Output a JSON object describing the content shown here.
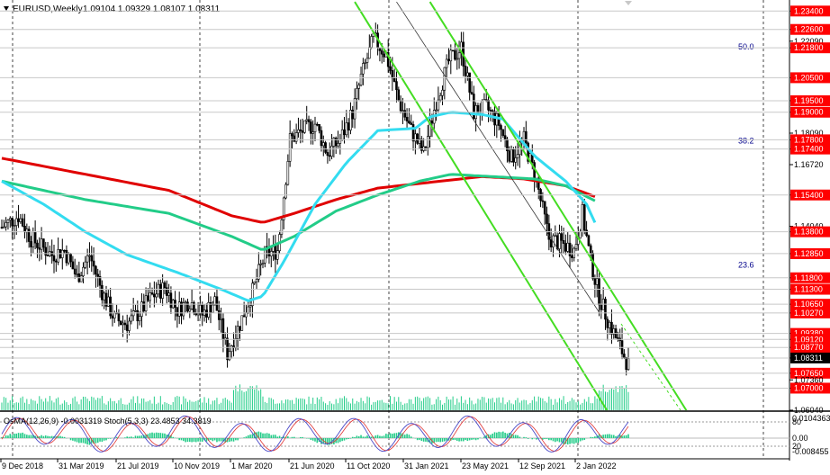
{
  "header": {
    "symbol": "EURUSD,Weekly",
    "ohlc": "1.09104 1.09329 1.08107 1.08311"
  },
  "subwindow": {
    "label": "OsMA(12,26,9) -0.0031319  Stoch(5,3,3) 23.4853 34.3819",
    "right_axis": [
      "0.0104363",
      "0.00",
      "-0.008455",
      "80",
      "20"
    ]
  },
  "fibonacci": [
    {
      "label": "50.0",
      "price": 1.2185
    },
    {
      "label": "38.2",
      "price": 1.1775
    },
    {
      "label": "23.6",
      "price": 1.1235
    }
  ],
  "price_axis": [
    {
      "label": "1.23400",
      "value": 1.234,
      "marker": true
    },
    {
      "label": "1.22600",
      "value": 1.226,
      "marker": true
    },
    {
      "label": "1.22090",
      "value": 1.2209,
      "marker": false
    },
    {
      "label": "1.21800",
      "value": 1.218,
      "marker": true
    },
    {
      "label": "1.20500",
      "value": 1.205,
      "marker": true
    },
    {
      "label": "1.19500",
      "value": 1.195,
      "marker": true
    },
    {
      "label": "1.19000",
      "value": 1.19,
      "marker": true
    },
    {
      "label": "1.18090",
      "value": 1.1809,
      "marker": false
    },
    {
      "label": "1.17800",
      "value": 1.178,
      "marker": true
    },
    {
      "label": "1.17400",
      "value": 1.174,
      "marker": true
    },
    {
      "label": "1.16720",
      "value": 1.1672,
      "marker": false
    },
    {
      "label": "1.15400",
      "value": 1.154,
      "marker": true
    },
    {
      "label": "1.14040",
      "value": 1.1404,
      "marker": false
    },
    {
      "label": "1.13800",
      "value": 1.138,
      "marker": true
    },
    {
      "label": "1.12850",
      "value": 1.1285,
      "marker": true
    },
    {
      "label": "1.11800",
      "value": 1.118,
      "marker": true
    },
    {
      "label": "1.11300",
      "value": 1.113,
      "marker": true
    },
    {
      "label": "1.10650",
      "value": 1.1065,
      "marker": true
    },
    {
      "label": "1.10270",
      "value": 1.1027,
      "marker": true
    },
    {
      "label": "1.09380",
      "value": 1.0938,
      "marker": true
    },
    {
      "label": "1.09120",
      "value": 1.0912,
      "marker": true
    },
    {
      "label": "1.08770",
      "value": 1.0877,
      "marker": true
    },
    {
      "label": "1.08311",
      "value": 1.08311,
      "marker": true,
      "current": true
    },
    {
      "label": "1.07650",
      "value": 1.0765,
      "marker": true
    },
    {
      "label": "1.07360",
      "value": 1.0736,
      "marker": false
    },
    {
      "label": "1.07000",
      "value": 1.07,
      "marker": true
    },
    {
      "label": "1.06040",
      "value": 1.0604,
      "marker": false
    }
  ],
  "time_axis": [
    "9 Dec 2018",
    "31 Mar 2019",
    "21 Jul 2019",
    "10 Nov 2019",
    "1 Mar 2020",
    "21 Jun 2020",
    "11 Oct 2020",
    "31 Jan 2021",
    "23 May 2021",
    "12 Sep 2021",
    "2 Jan 2022"
  ],
  "colors": {
    "background": "#ffffff",
    "candles": "#000000",
    "ema_red": "#e00000",
    "ema_green": "#22cc88",
    "ema_cyan": "#33dcf0",
    "channel": "#44dd22",
    "marker": "#ff0000",
    "current_marker": "#000000",
    "osma_histogram": "#22cc88",
    "stoch_main": "#4a48c8",
    "stoch_signal": "#e03030"
  },
  "chart_data": {
    "type": "candlestick",
    "symbol": "EURUSD",
    "timeframe": "Weekly",
    "price_range": [
      1.0604,
      1.2388
    ],
    "ohlc_last": {
      "open": 1.09104,
      "high": 1.09329,
      "low": 1.08107,
      "close": 1.08311
    },
    "close_anchors": [
      [
        0,
        1.14
      ],
      [
        8,
        1.145
      ],
      [
        14,
        1.135
      ],
      [
        24,
        1.128
      ],
      [
        30,
        1.13
      ],
      [
        36,
        1.118
      ],
      [
        42,
        1.128
      ],
      [
        48,
        1.112
      ],
      [
        54,
        1.1
      ],
      [
        60,
        1.098
      ],
      [
        66,
        1.103
      ],
      [
        72,
        1.11
      ],
      [
        78,
        1.114
      ],
      [
        84,
        1.104
      ],
      [
        90,
        1.108
      ],
      [
        96,
        1.102
      ],
      [
        102,
        1.108
      ],
      [
        108,
        1.085
      ],
      [
        114,
        1.098
      ],
      [
        120,
        1.112
      ],
      [
        126,
        1.128
      ],
      [
        132,
        1.13
      ],
      [
        138,
        1.178
      ],
      [
        144,
        1.182
      ],
      [
        150,
        1.185
      ],
      [
        156,
        1.172
      ],
      [
        162,
        1.178
      ],
      [
        168,
        1.19
      ],
      [
        172,
        1.205
      ],
      [
        178,
        1.222
      ],
      [
        184,
        1.215
      ],
      [
        190,
        1.195
      ],
      [
        196,
        1.182
      ],
      [
        202,
        1.172
      ],
      [
        208,
        1.195
      ],
      [
        214,
        1.212
      ],
      [
        220,
        1.218
      ],
      [
        226,
        1.19
      ],
      [
        232,
        1.192
      ],
      [
        238,
        1.185
      ],
      [
        244,
        1.17
      ],
      [
        250,
        1.178
      ],
      [
        256,
        1.16
      ],
      [
        262,
        1.135
      ],
      [
        268,
        1.133
      ],
      [
        274,
        1.13
      ],
      [
        278,
        1.146
      ],
      [
        282,
        1.125
      ],
      [
        286,
        1.11
      ],
      [
        290,
        1.1
      ],
      [
        294,
        1.092
      ],
      [
        300,
        1.08
      ]
    ],
    "ma_curves": [
      {
        "color": "red",
        "points": [
          [
            0,
            1.17
          ],
          [
            40,
            1.163
          ],
          [
            80,
            1.156
          ],
          [
            110,
            1.145
          ],
          [
            125,
            1.142
          ],
          [
            140,
            1.146
          ],
          [
            160,
            1.152
          ],
          [
            180,
            1.157
          ],
          [
            200,
            1.159
          ],
          [
            230,
            1.162
          ],
          [
            250,
            1.161
          ],
          [
            270,
            1.158
          ],
          [
            285,
            1.153
          ]
        ]
      },
      {
        "color": "green",
        "points": [
          [
            0,
            1.16
          ],
          [
            40,
            1.152
          ],
          [
            80,
            1.146
          ],
          [
            110,
            1.136
          ],
          [
            125,
            1.13
          ],
          [
            140,
            1.136
          ],
          [
            160,
            1.147
          ],
          [
            180,
            1.154
          ],
          [
            200,
            1.16
          ],
          [
            215,
            1.163
          ],
          [
            235,
            1.162
          ],
          [
            255,
            1.161
          ],
          [
            270,
            1.158
          ],
          [
            285,
            1.151
          ]
        ]
      },
      {
        "color": "cyan",
        "points": [
          [
            0,
            1.16
          ],
          [
            20,
            1.15
          ],
          [
            40,
            1.138
          ],
          [
            60,
            1.128
          ],
          [
            85,
            1.12
          ],
          [
            105,
            1.113
          ],
          [
            118,
            1.108
          ],
          [
            125,
            1.11
          ],
          [
            135,
            1.125
          ],
          [
            150,
            1.15
          ],
          [
            165,
            1.168
          ],
          [
            180,
            1.182
          ],
          [
            198,
            1.183
          ],
          [
            205,
            1.188
          ],
          [
            215,
            1.19
          ],
          [
            230,
            1.189
          ],
          [
            240,
            1.187
          ],
          [
            255,
            1.171
          ],
          [
            270,
            1.16
          ],
          [
            280,
            1.15
          ],
          [
            285,
            1.14
          ]
        ]
      }
    ],
    "channel_lines": [
      [
        [
          169,
          1.238
        ],
        [
          290,
          1.06
        ]
      ],
      [
        [
          205,
          1.238
        ],
        [
          328,
          1.06
        ]
      ],
      [
        [
          189,
          1.238
        ],
        [
          286,
          1.103
        ]
      ]
    ]
  }
}
